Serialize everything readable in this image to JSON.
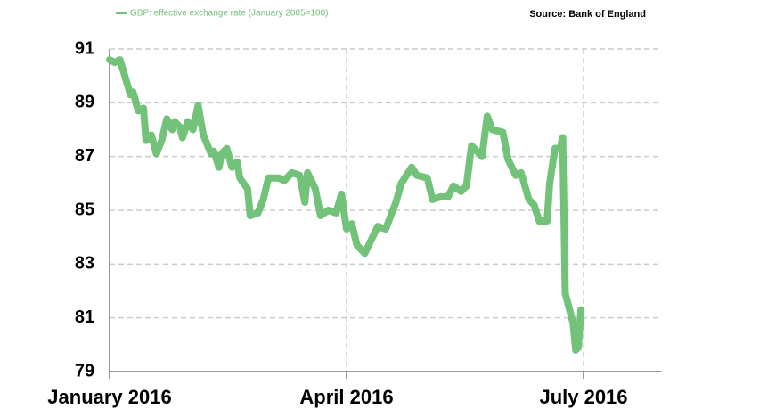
{
  "chart_data": {
    "type": "line",
    "source": "Source: Bank of England",
    "series": [
      {
        "name": "GBP: effective exchange rate (January 2005=100)",
        "color": "#72c27a",
        "x": [
          0,
          2,
          4,
          8,
          9,
          11,
          13,
          14,
          16,
          18,
          20,
          22,
          24,
          25,
          27,
          28,
          30,
          32,
          34,
          36,
          39,
          40,
          42,
          43,
          45,
          47,
          49,
          50,
          53,
          54,
          57,
          59,
          61,
          65,
          67,
          70,
          73,
          75,
          76,
          79,
          81,
          84,
          87,
          89,
          91,
          93,
          95,
          98,
          101,
          103,
          106,
          108,
          110,
          112,
          116,
          118,
          122,
          124,
          127,
          130,
          132,
          135,
          137,
          139,
          141,
          143,
          145,
          147,
          151,
          153,
          156,
          158,
          161,
          163,
          165,
          168,
          169,
          171,
          173,
          174,
          175,
          178,
          179,
          180,
          181
        ],
        "values": [
          90.6,
          90.5,
          90.6,
          89.3,
          89.4,
          88.7,
          88.8,
          87.6,
          87.8,
          87.1,
          87.6,
          88.4,
          88.0,
          88.3,
          88.1,
          87.7,
          88.3,
          88.0,
          88.9,
          87.8,
          87.1,
          87.2,
          86.6,
          87.1,
          87.3,
          86.6,
          86.8,
          86.2,
          85.8,
          84.8,
          84.9,
          85.4,
          86.2,
          86.2,
          86.1,
          86.4,
          86.3,
          85.3,
          86.4,
          85.8,
          84.8,
          85.0,
          84.9,
          85.6,
          84.3,
          84.5,
          83.7,
          83.4,
          84.0,
          84.4,
          84.3,
          84.8,
          85.3,
          86.0,
          86.6,
          86.3,
          86.2,
          85.4,
          85.5,
          85.5,
          85.9,
          85.7,
          85.9,
          87.4,
          87.2,
          87.0,
          88.5,
          88.0,
          87.9,
          86.9,
          86.3,
          86.4,
          85.4,
          85.2,
          84.6,
          84.6,
          86.0,
          87.3,
          87.3,
          87.7,
          81.9,
          80.8,
          79.8,
          79.9,
          81.3
        ]
      }
    ],
    "xlim": [
      0,
      212
    ],
    "xticks": [
      {
        "value": 0,
        "label": "January 2016"
      },
      {
        "value": 91,
        "label": "April 2016"
      },
      {
        "value": 182,
        "label": "July 2016"
      }
    ],
    "ylim": [
      79,
      91
    ],
    "yticks": [
      79,
      81,
      83,
      85,
      87,
      89,
      91
    ],
    "grid": true
  }
}
